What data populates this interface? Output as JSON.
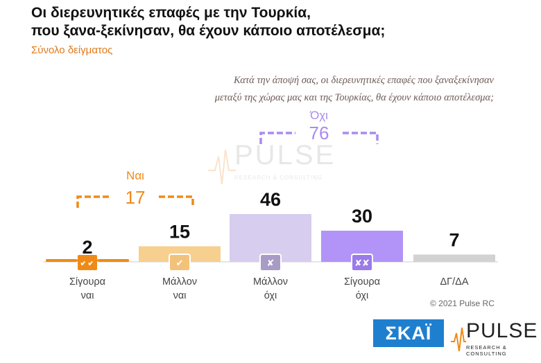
{
  "header": {
    "title_line1": "Οι διερευνητικές επαφές με την Τουρκία,",
    "title_line2": "που ξανα-ξεκίνησαν, θα έχουν κάποιο αποτέλεσμα;",
    "subtitle": "Σύνολο δείγματος",
    "question_line1": "Κατά την άποψή σας, οι διερευνητικές επαφές που ξαναξεκίνησαν",
    "question_line2": "μεταξύ της χώρας μας και της Τουρκίας, θα έχουν κάποιο αποτέλεσμα;"
  },
  "chart_data": {
    "type": "bar",
    "categories": [
      {
        "line1": "Σίγουρα",
        "line2": "ναι"
      },
      {
        "line1": "Μάλλον",
        "line2": "ναι"
      },
      {
        "line1": "Μάλλον",
        "line2": "όχι"
      },
      {
        "line1": "Σίγουρα",
        "line2": "όχι"
      },
      {
        "line1": "ΔΓ/ΔΑ",
        "line2": ""
      }
    ],
    "values": [
      2,
      15,
      46,
      30,
      7
    ],
    "colors": [
      "#ef8a17",
      "#f7cf8f",
      "#d7cdef",
      "#b293f7",
      "#d2d2d2"
    ],
    "icons": [
      "double-check-icon",
      "check-icon",
      "cross-icon",
      "double-cross-icon",
      ""
    ],
    "icon_glyphs": [
      "✔✔",
      "✔",
      "✘",
      "✘✘",
      ""
    ],
    "ylim": [
      0,
      50
    ],
    "groups": [
      {
        "label": "Ναι",
        "value": "17",
        "color": "#ef8a17"
      },
      {
        "label": "Όχι",
        "value": "76",
        "color": "#a98af2"
      }
    ]
  },
  "footer": {
    "copyright": "© 2021 Pulse RC",
    "skai_logo": "ΣΚΑΪ",
    "pulse_logo": "PULSE",
    "pulse_tagline": "RESEARCH & CONSULTING"
  }
}
